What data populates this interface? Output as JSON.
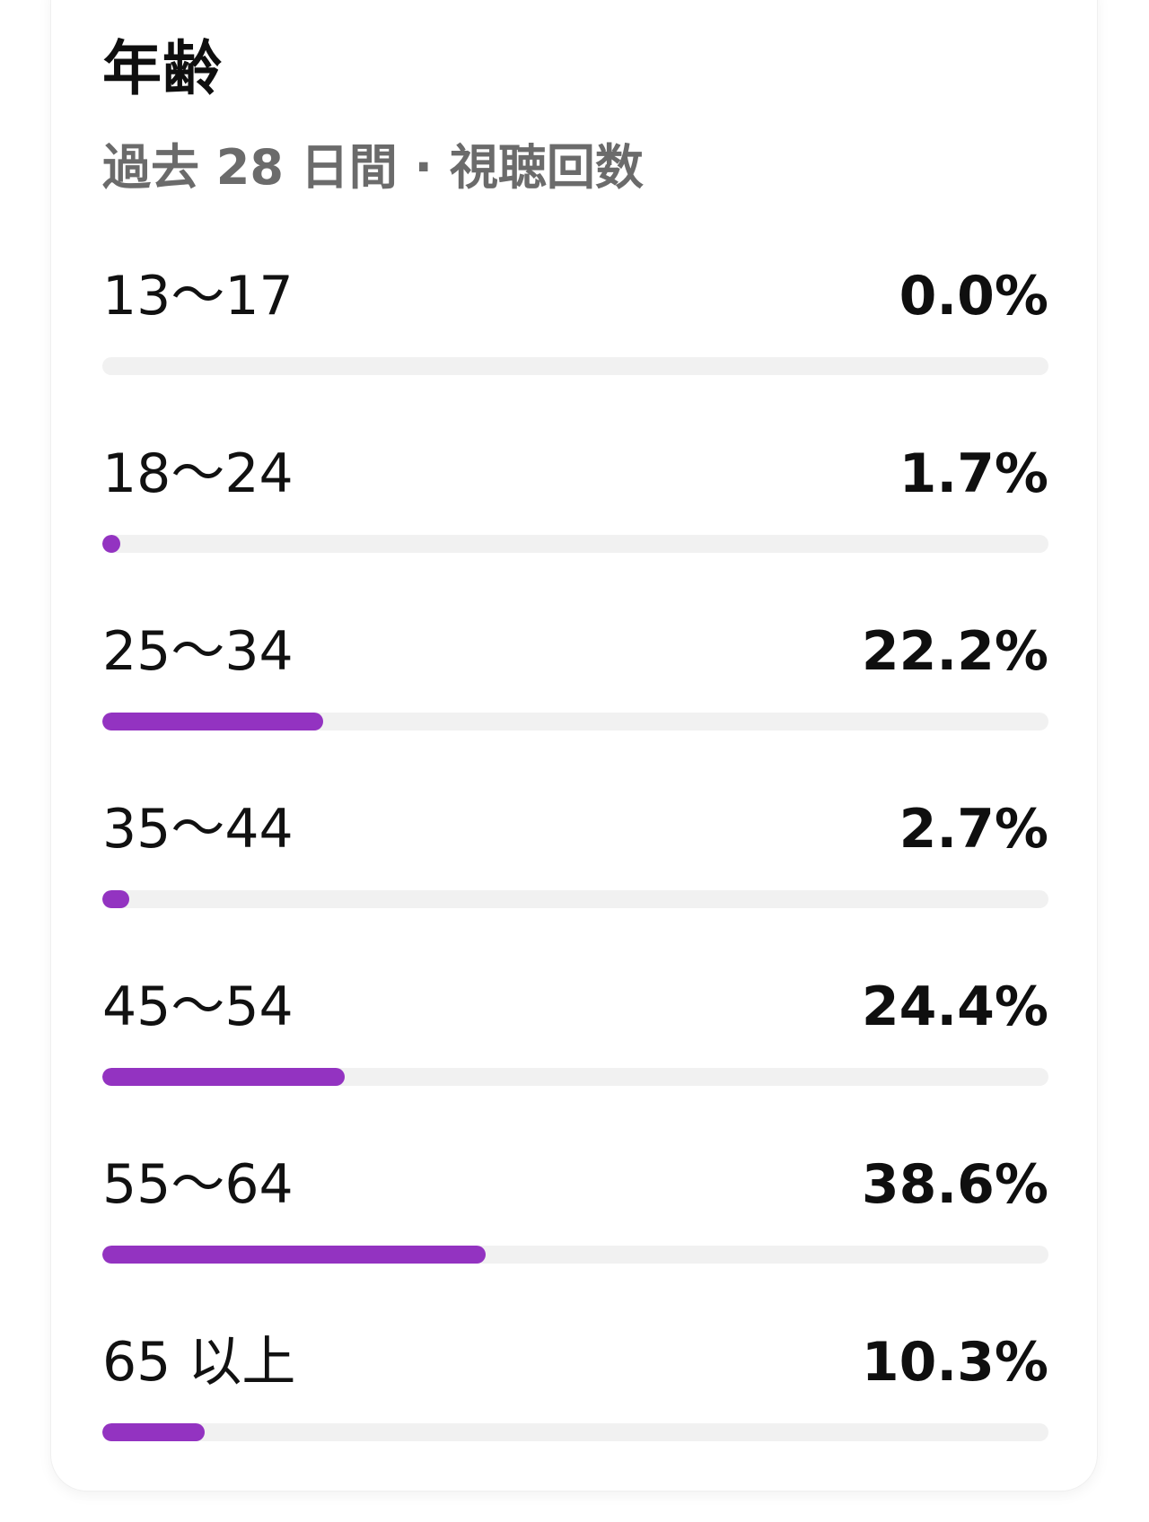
{
  "card": {
    "title": "年齢",
    "subtitle": "過去 28 日間 · 視聴回数"
  },
  "accent_color": "#9333c1",
  "track_color": "#f1f1f1",
  "age_groups": [
    {
      "label": "13～17",
      "value_text": "0.0%",
      "fill_fraction": 0.0
    },
    {
      "label": "18～24",
      "value_text": "1.7%",
      "fill_fraction": 0.017
    },
    {
      "label": "25～34",
      "value_text": "22.2%",
      "fill_fraction": 0.222
    },
    {
      "label": "35～44",
      "value_text": "2.7%",
      "fill_fraction": 0.027
    },
    {
      "label": "45～54",
      "value_text": "24.4%",
      "fill_fraction": 0.244
    },
    {
      "label": "55～64",
      "value_text": "38.6%",
      "fill_fraction": 0.386
    },
    {
      "label": "65 以上",
      "value_text": "10.3%",
      "fill_fraction": 0.103
    }
  ]
}
